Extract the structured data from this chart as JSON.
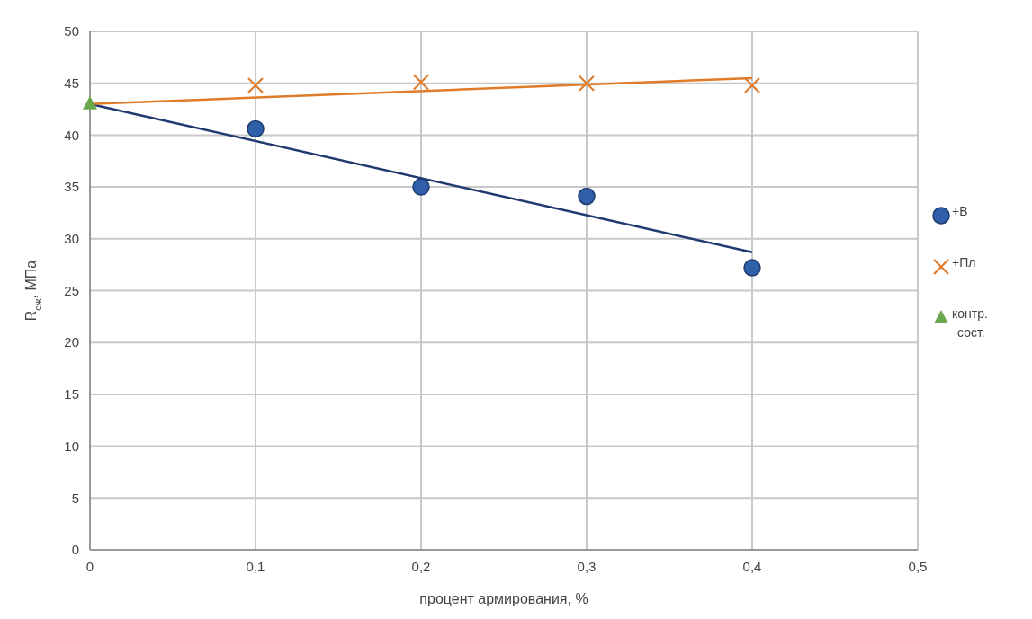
{
  "chart_data": {
    "type": "scatter",
    "xlabel": "процент армирования, %",
    "ylabel": "R$_{сж}$, МПа",
    "xlim": [
      0,
      0.5
    ],
    "xticks": [
      {
        "value": 0,
        "label": "0"
      },
      {
        "value": 0.1,
        "label": "0,1"
      },
      {
        "value": 0.2,
        "label": "0,2"
      },
      {
        "value": 0.3,
        "label": "0,3"
      },
      {
        "value": 0.4,
        "label": "0,4"
      },
      {
        "value": 0.5,
        "label": "0,5"
      }
    ],
    "ylim": [
      0,
      50
    ],
    "yticks": [
      0,
      5,
      10,
      15,
      20,
      25,
      30,
      35,
      40,
      45,
      50
    ],
    "grid": true,
    "legend": "right",
    "series": [
      {
        "type": "line",
        "color": "#1f3a6e",
        "marker": "none",
        "x": [
          0,
          0.4
        ],
        "values": [
          43,
          28.7
        ]
      },
      {
        "type": "line",
        "color": "#e07b2a",
        "marker": "none",
        "x": [
          0,
          0.4
        ],
        "values": [
          43,
          45.5
        ]
      },
      {
        "name": "+В",
        "color": "#2e5fa8",
        "marker": "circle",
        "x": [
          0.1,
          0.2,
          0.3,
          0.4
        ],
        "values": [
          40.6,
          35,
          34.1,
          27.2
        ]
      },
      {
        "name": "+Пл",
        "color": "#e07b2a",
        "marker": "cross",
        "x": [
          0.1,
          0.2,
          0.3,
          0.4
        ],
        "values": [
          44.8,
          45.1,
          45,
          44.8
        ]
      },
      {
        "name": "контр. сост.",
        "color": "#6aa84f",
        "marker": "triangle",
        "x": [
          0
        ],
        "values": [
          43
        ]
      }
    ]
  }
}
